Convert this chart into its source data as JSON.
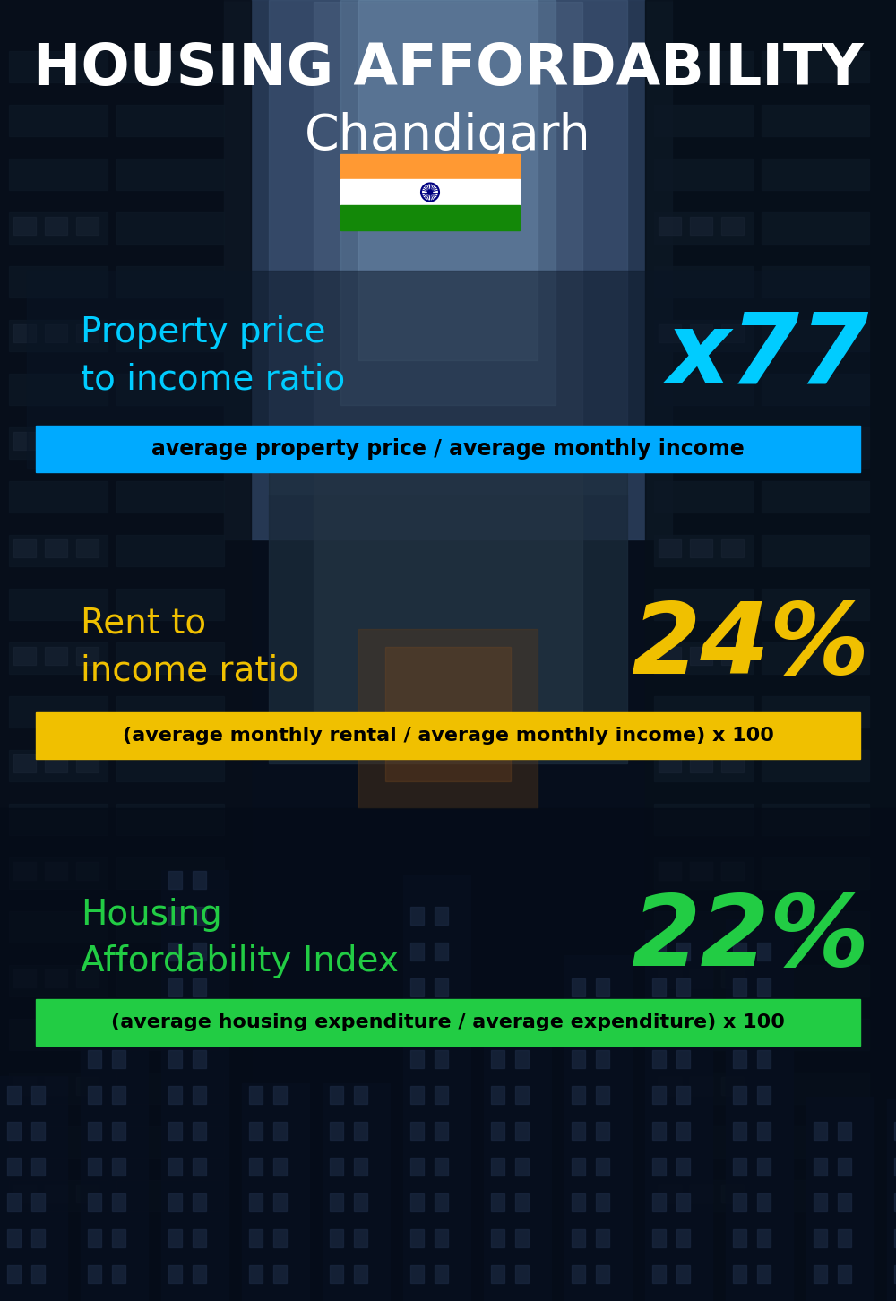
{
  "title_line1": "HOUSING AFFORDABILITY",
  "title_line2": "Chandigarh",
  "bg_color": "#0a1525",
  "section1_label": "Property price\nto income ratio",
  "section1_value": "x77",
  "section1_label_color": "#00ccff",
  "section1_value_color": "#00ccff",
  "section1_band_text": "average property price / average monthly income",
  "section1_band_bg": "#00aaff",
  "section1_band_text_color": "#000000",
  "section2_label": "Rent to\nincome ratio",
  "section2_value": "24%",
  "section2_label_color": "#f0c000",
  "section2_value_color": "#f0c000",
  "section2_band_text": "(average monthly rental / average monthly income) x 100",
  "section2_band_bg": "#f0c000",
  "section2_band_text_color": "#000000",
  "section3_label": "Housing\nAffordability Index",
  "section3_value": "22%",
  "section3_label_color": "#22cc44",
  "section3_value_color": "#22cc44",
  "section3_band_text": "(average housing expenditure / average expenditure) x 100",
  "section3_band_bg": "#22cc44",
  "section3_band_text_color": "#000000",
  "flag_orange": "#FF9933",
  "flag_white": "#FFFFFF",
  "flag_green": "#138808",
  "flag_navy": "#000080"
}
